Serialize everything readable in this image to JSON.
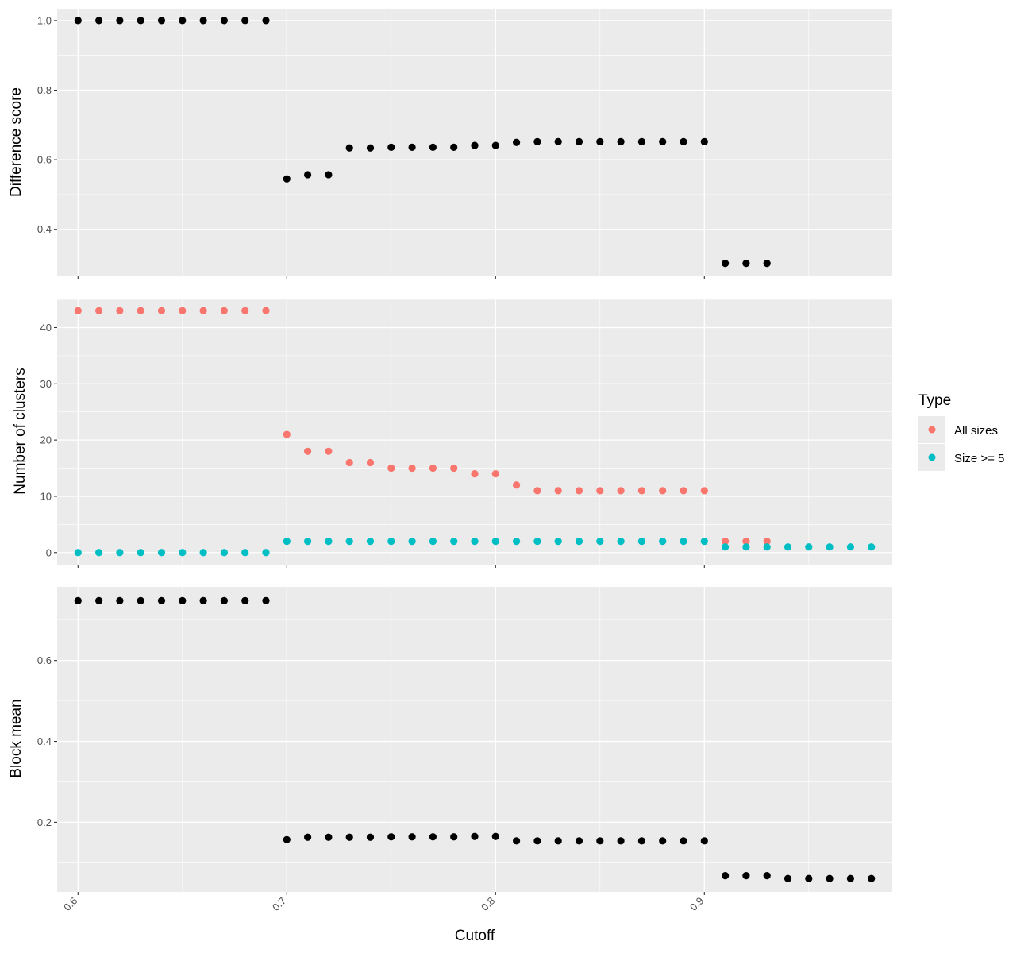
{
  "chart_data": {
    "type": "scatter",
    "colors": {
      "panel_background": "#ebebeb",
      "grid": "#ffffff",
      "default_point": "#000000",
      "all_sizes": "#f8766d",
      "size_ge_5": "#00bfc4"
    },
    "xlabel": "Cutoff",
    "xlim": [
      0.59,
      0.99
    ],
    "x_ticks": [
      0.6,
      0.7,
      0.8,
      0.9
    ],
    "x_tick_labels": [
      "0.6",
      "0.7",
      "0.8",
      "0.9"
    ],
    "legend": {
      "placement": "right",
      "title": "Type",
      "entries": [
        "All sizes",
        "Size >= 5"
      ]
    },
    "panels": [
      {
        "ylabel": "Difference score",
        "ylim": [
          0.267,
          1.034
        ],
        "y_ticks": [
          0.4,
          0.6,
          0.8,
          1.0
        ],
        "y_tick_labels": [
          "0.4",
          "0.6",
          "0.8",
          "1.0"
        ],
        "series": [
          {
            "x": [
              0.6,
              0.61,
              0.62,
              0.63,
              0.64,
              0.65,
              0.66,
              0.67,
              0.68,
              0.69,
              0.7,
              0.71,
              0.72,
              0.73,
              0.74,
              0.75,
              0.76,
              0.77,
              0.78,
              0.79,
              0.8,
              0.81,
              0.82,
              0.83,
              0.84,
              0.85,
              0.86,
              0.87,
              0.88,
              0.89,
              0.9,
              0.91,
              0.92,
              0.93
            ],
            "y": [
              1.0,
              1.0,
              1.0,
              1.0,
              1.0,
              1.0,
              1.0,
              1.0,
              1.0,
              1.0,
              0.545,
              0.557,
              0.557,
              0.634,
              0.634,
              0.636,
              0.636,
              0.636,
              0.636,
              0.641,
              0.641,
              0.65,
              0.652,
              0.652,
              0.652,
              0.652,
              0.652,
              0.652,
              0.652,
              0.652,
              0.652,
              0.302,
              0.302,
              0.302
            ]
          }
        ]
      },
      {
        "ylabel": "Number of clusters",
        "ylim": [
          -2.15,
          45.15
        ],
        "y_ticks": [
          0,
          10,
          20,
          30,
          40
        ],
        "y_tick_labels": [
          "0",
          "10",
          "20",
          "30",
          "40"
        ],
        "series": [
          {
            "name": "All sizes",
            "x": [
              0.6,
              0.61,
              0.62,
              0.63,
              0.64,
              0.65,
              0.66,
              0.67,
              0.68,
              0.69,
              0.7,
              0.71,
              0.72,
              0.73,
              0.74,
              0.75,
              0.76,
              0.77,
              0.78,
              0.79,
              0.8,
              0.81,
              0.82,
              0.83,
              0.84,
              0.85,
              0.86,
              0.87,
              0.88,
              0.89,
              0.9,
              0.91,
              0.92,
              0.93
            ],
            "y": [
              43,
              43,
              43,
              43,
              43,
              43,
              43,
              43,
              43,
              43,
              21,
              18,
              18,
              16,
              16,
              15,
              15,
              15,
              15,
              14,
              14,
              12,
              11,
              11,
              11,
              11,
              11,
              11,
              11,
              11,
              11,
              2,
              2,
              2
            ]
          },
          {
            "name": "Size >= 5",
            "x": [
              0.6,
              0.61,
              0.62,
              0.63,
              0.64,
              0.65,
              0.66,
              0.67,
              0.68,
              0.69,
              0.7,
              0.71,
              0.72,
              0.73,
              0.74,
              0.75,
              0.76,
              0.77,
              0.78,
              0.79,
              0.8,
              0.81,
              0.82,
              0.83,
              0.84,
              0.85,
              0.86,
              0.87,
              0.88,
              0.89,
              0.9,
              0.91,
              0.92,
              0.93,
              0.94,
              0.95,
              0.96,
              0.97,
              0.98
            ],
            "y": [
              0,
              0,
              0,
              0,
              0,
              0,
              0,
              0,
              0,
              0,
              2,
              2,
              2,
              2,
              2,
              2,
              2,
              2,
              2,
              2,
              2,
              2,
              2,
              2,
              2,
              2,
              2,
              2,
              2,
              2,
              2,
              1,
              1,
              1,
              1,
              1,
              1,
              1,
              1
            ]
          }
        ]
      },
      {
        "ylabel": "Block mean",
        "ylim": [
          0.028,
          0.782
        ],
        "y_ticks": [
          0.2,
          0.4,
          0.6
        ],
        "y_tick_labels": [
          "0.2",
          "0.4",
          "0.6"
        ],
        "series": [
          {
            "x": [
              0.6,
              0.61,
              0.62,
              0.63,
              0.64,
              0.65,
              0.66,
              0.67,
              0.68,
              0.69,
              0.7,
              0.71,
              0.72,
              0.73,
              0.74,
              0.75,
              0.76,
              0.77,
              0.78,
              0.79,
              0.8,
              0.81,
              0.82,
              0.83,
              0.84,
              0.85,
              0.86,
              0.87,
              0.88,
              0.89,
              0.9,
              0.91,
              0.92,
              0.93,
              0.94,
              0.95,
              0.96,
              0.97,
              0.98
            ],
            "y": [
              0.748,
              0.748,
              0.748,
              0.748,
              0.748,
              0.748,
              0.748,
              0.748,
              0.748,
              0.748,
              0.157,
              0.163,
              0.163,
              0.163,
              0.163,
              0.164,
              0.164,
              0.164,
              0.164,
              0.165,
              0.165,
              0.154,
              0.154,
              0.154,
              0.154,
              0.154,
              0.154,
              0.154,
              0.154,
              0.154,
              0.154,
              0.068,
              0.068,
              0.068,
              0.061,
              0.061,
              0.061,
              0.061,
              0.061
            ]
          }
        ]
      }
    ]
  }
}
